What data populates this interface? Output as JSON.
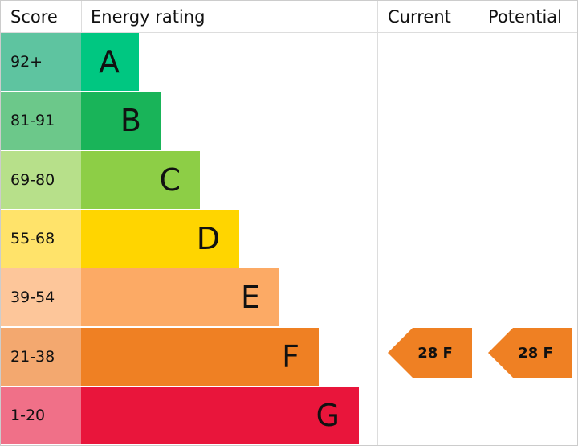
{
  "header": {
    "score": "Score",
    "rating": "Energy rating",
    "current": "Current",
    "potential": "Potential"
  },
  "rows": [
    {
      "score": "92+",
      "band": "A"
    },
    {
      "score": "81-91",
      "band": "B"
    },
    {
      "score": "69-80",
      "band": "C"
    },
    {
      "score": "55-68",
      "band": "D"
    },
    {
      "score": "39-54",
      "band": "E"
    },
    {
      "score": "21-38",
      "band": "F"
    },
    {
      "score": "1-20",
      "band": "G"
    }
  ],
  "current": {
    "label": "28 F"
  },
  "potential": {
    "label": "28 F"
  }
}
